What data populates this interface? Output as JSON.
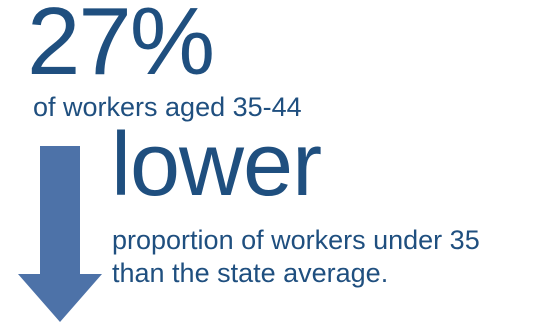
{
  "colors": {
    "text": "#1f4f7f",
    "arrow": "#4d72a8"
  },
  "stat": {
    "value": "27%",
    "caption": "of workers aged 35-44"
  },
  "comparison": {
    "arrow_icon": "down-arrow-icon",
    "headline": "lower",
    "description_line_1": "proportion of workers under 35",
    "description_line_2": "than the state average."
  }
}
